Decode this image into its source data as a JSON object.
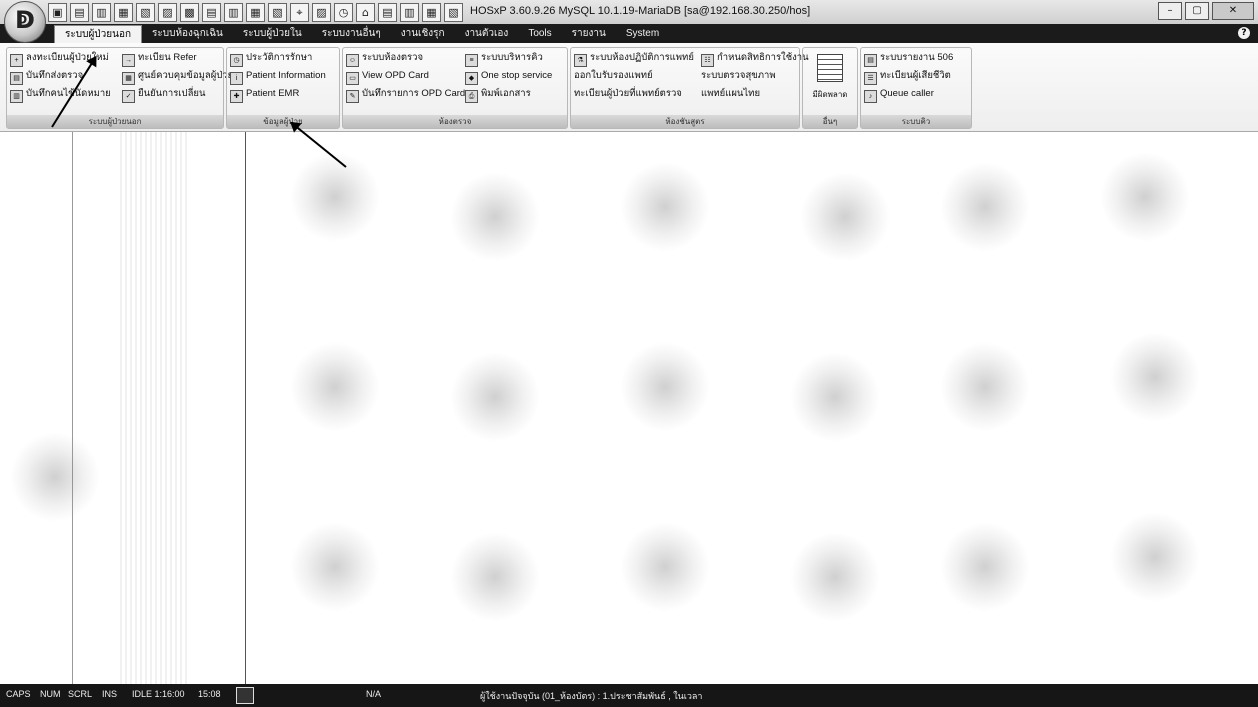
{
  "window": {
    "title": "HOSxP 3.60.9.26 MySQL 10.1.19-MariaDB [sa@192.168.30.250/hos]",
    "controls": [
      "–",
      "▢",
      "✕"
    ]
  },
  "quick_access": [
    "▣",
    "▤",
    "▥",
    "▦",
    "▧",
    "▨",
    "▩",
    "▤",
    "▥",
    "▦",
    "▧",
    "⌖",
    "▨",
    "◷",
    "⌂",
    "▤",
    "▥",
    "▦",
    "▧"
  ],
  "tabs": [
    {
      "label": "ระบบผู้ป่วยนอก",
      "active": true
    },
    {
      "label": "ระบบห้องฉุกเฉิน",
      "active": false
    },
    {
      "label": "ระบบผู้ป่วยใน",
      "active": false
    },
    {
      "label": "ระบบงานอื่นๆ",
      "active": false
    },
    {
      "label": "งานเชิงรุก",
      "active": false
    },
    {
      "label": "งานตัวเอง",
      "active": false
    },
    {
      "label": "Tools",
      "active": false
    },
    {
      "label": "รายงาน",
      "active": false
    },
    {
      "label": "System",
      "active": false
    }
  ],
  "ribbon": {
    "group1": {
      "label": "ระบบผู้ป่วยนอก",
      "items": [
        "ลงทะเบียนผู้ป่วยใหม่",
        "ทะเบียน Refer",
        "บันทึกส่งตรวจ",
        "ศูนย์ควบคุมข้อมูลผู้ป่วย",
        "บันทึกคนไข้นัดหมาย",
        "ยืนยันการเปลี่ยน"
      ]
    },
    "group2": {
      "label": "ข้อมูลผู้ป่วย",
      "items": [
        "ประวัติการรักษา",
        "Patient Information",
        "Patient EMR"
      ]
    },
    "group3": {
      "label": "ห้องตรวจ",
      "items": [
        "ระบบห้องตรวจ",
        "ระบบบริหารคิว",
        "View OPD Card",
        "One stop service",
        "บันทึกรายการ OPD Card",
        "พิมพ์เอกสาร"
      ]
    },
    "group4": {
      "label": "ห้องชันสูตร",
      "items": [
        "ระบบห้องปฏิบัติการแพทย์",
        "กำหนดสิทธิการใช้งาน",
        "ออกใบรับรองแพทย์",
        "ระบบตรวจสุขภาพ",
        "ทะเบียนผู้ป่วยที่แพทย์ตรวจ",
        "แพทย์แผนไทย"
      ]
    },
    "group5": {
      "label": "อื่นๆ",
      "big_button": "มีผิดพลาด"
    },
    "group6": {
      "label": "ระบบคิว",
      "items": [
        "ระบบรายงาน 506",
        "ทะเบียนผู้เสียชีวิต",
        "Queue caller"
      ]
    }
  },
  "status": {
    "caps": "CAPS",
    "num": "NUM",
    "scrl": "SCRL",
    "ins": "INS",
    "idle": "IDLE 1:16:00",
    "time": "15:08",
    "na": "N/A",
    "message": "ผู้ใช้งานปัจจุบัน (01_ห้องบัตร) : 1.ประชาสัมพันธ์ , ในเวลา"
  }
}
